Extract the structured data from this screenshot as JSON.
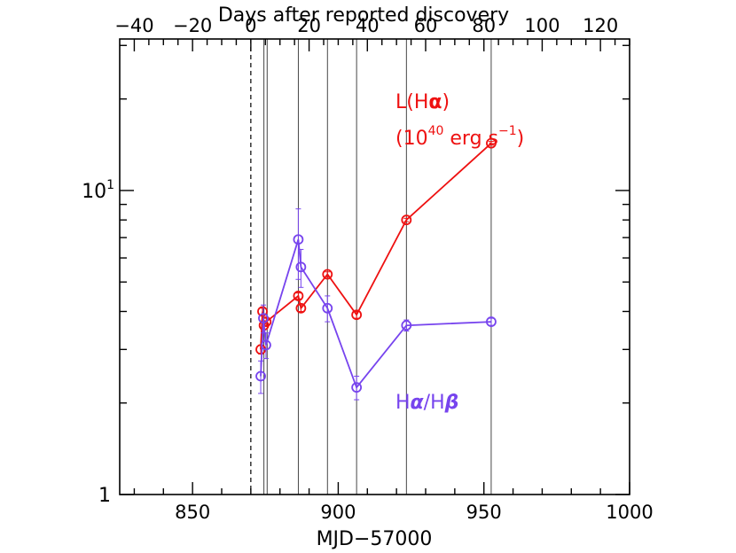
{
  "chart_data": {
    "type": "line",
    "yscale": "log",
    "xlabel": "MJD−57000",
    "x2label": "Days after reported discovery",
    "xlim": [
      825,
      1000
    ],
    "x2lim": [
      -45,
      130
    ],
    "ylim": [
      1,
      31.5
    ],
    "x_ticks": [
      {
        "value": 850,
        "label": "850"
      },
      {
        "value": 900,
        "label": "900"
      },
      {
        "value": 950,
        "label": "950"
      },
      {
        "value": 1000,
        "label": "1000"
      }
    ],
    "x2_ticks": [
      {
        "value": -40,
        "label": "−40"
      },
      {
        "value": -20,
        "label": "−20"
      },
      {
        "value": 0,
        "label": "0"
      },
      {
        "value": 20,
        "label": "20"
      },
      {
        "value": 40,
        "label": "40"
      },
      {
        "value": 60,
        "label": "60"
      },
      {
        "value": 80,
        "label": "80"
      },
      {
        "value": 100,
        "label": "100"
      },
      {
        "value": 120,
        "label": "120"
      }
    ],
    "y_ticks": [
      {
        "value": 1,
        "base": "1",
        "exp": ""
      },
      {
        "value": 10,
        "base": "10",
        "exp": "1"
      }
    ],
    "discovery_mjd": 870,
    "spectrum_epochs": [
      874.5,
      875.6,
      886.3,
      896.3,
      906.3,
      923.4,
      952.5
    ],
    "series": [
      {
        "name": "L(Hα) (10^40 erg s^-1)",
        "color": "#ee1111",
        "x": [
          873.4,
          874.0,
          874.5,
          875.3,
          886.3,
          887.2,
          896.3,
          906.3,
          923.4,
          952.5
        ],
        "y": [
          3.0,
          4.0,
          3.6,
          3.7,
          4.5,
          4.1,
          5.3,
          3.9,
          8.0,
          14.3
        ],
        "err": [
          0.1,
          0.1,
          0.1,
          0.1,
          0.1,
          0.1,
          0.1,
          0.1,
          0.1,
          0.2
        ]
      },
      {
        "name": "Hα/Hβ",
        "color": "#7744ee",
        "x": [
          873.4,
          874.3,
          875.2,
          886.3,
          887.2,
          896.3,
          906.3,
          923.4,
          952.5
        ],
        "y": [
          2.45,
          3.8,
          3.1,
          6.9,
          5.6,
          4.1,
          2.25,
          3.6,
          3.7
        ],
        "err": [
          0.3,
          0.4,
          0.3,
          1.8,
          0.8,
          0.4,
          0.2,
          0.15,
          0.1
        ]
      }
    ],
    "annotations": {
      "lum_line1": "L(H",
      "lum_alpha": "α",
      "lum_close": ")",
      "lum_open": "(10",
      "lum_exp40": "40",
      "lum_unit": " erg s",
      "lum_expm1": "−1",
      "lum_close2": ")",
      "ratio_h1": "H",
      "ratio_alpha": "α",
      "ratio_slash": "/H",
      "ratio_beta": "β"
    }
  }
}
